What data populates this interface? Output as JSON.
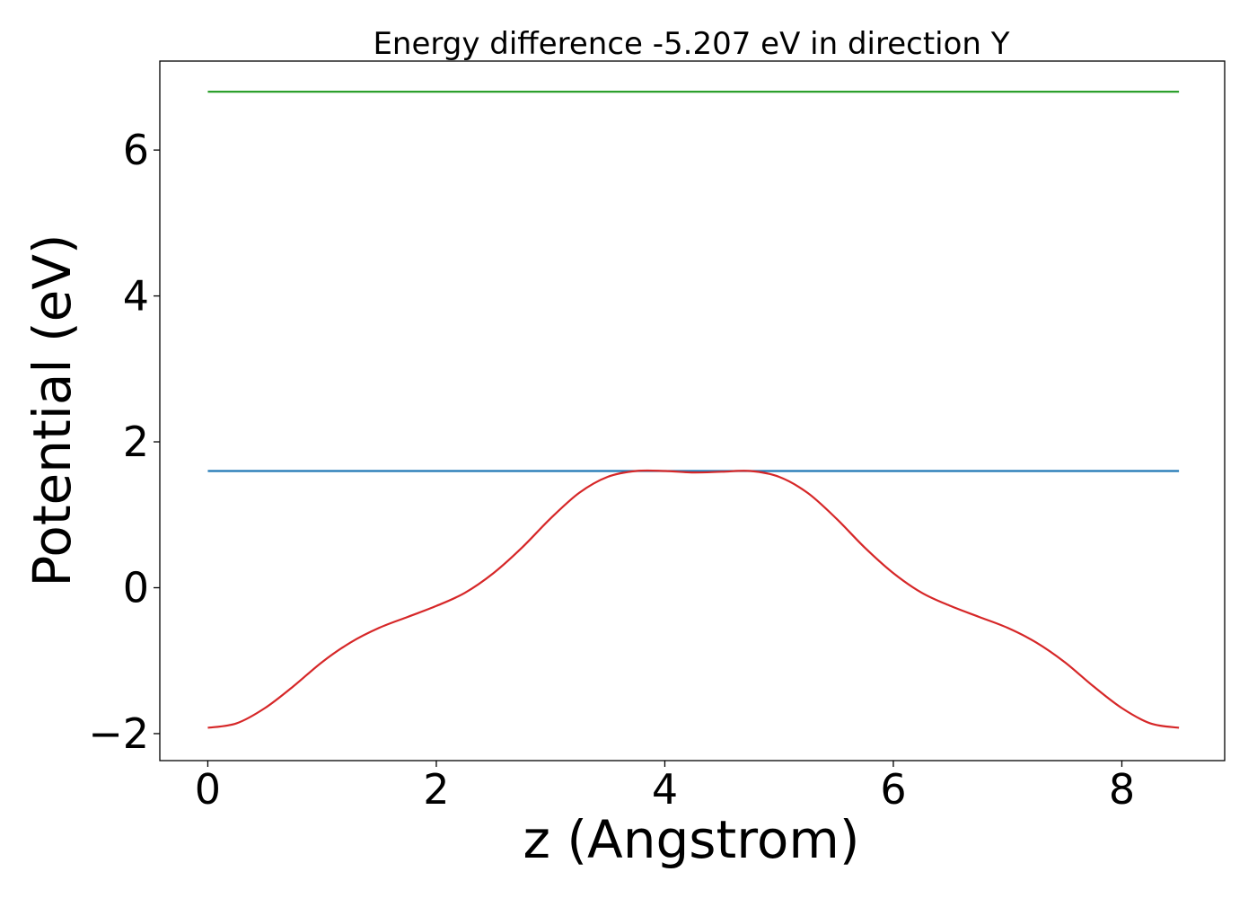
{
  "chart_data": {
    "type": "line",
    "title": "Energy difference -5.207 eV in direction Y",
    "xlabel": "z (Angstrom)",
    "ylabel": "Potential (eV)",
    "xlim": [
      -0.42,
      8.9
    ],
    "ylim": [
      -2.37,
      7.22
    ],
    "xticks": [
      0,
      2,
      4,
      6,
      8
    ],
    "xtick_labels": [
      "0",
      "2",
      "4",
      "6",
      "8"
    ],
    "yticks": [
      -2,
      0,
      2,
      4,
      6
    ],
    "ytick_labels": [
      "−2",
      "0",
      "2",
      "4",
      "6"
    ],
    "grid": false,
    "legend": "none",
    "series": [
      {
        "color": "#2ca02c",
        "x": [
          0,
          8.5
        ],
        "y": [
          6.8,
          6.8
        ]
      },
      {
        "color": "#1f77b4",
        "x": [
          0,
          8.5
        ],
        "y": [
          1.6,
          1.6
        ]
      },
      {
        "color": "#d62728",
        "x": [
          0,
          0.25,
          0.5,
          0.75,
          1.0,
          1.25,
          1.5,
          1.75,
          2.0,
          2.25,
          2.5,
          2.75,
          3.0,
          3.25,
          3.5,
          3.75,
          4.0,
          4.25,
          4.5,
          4.75,
          5.0,
          5.25,
          5.5,
          5.75,
          6.0,
          6.25,
          6.5,
          6.75,
          7.0,
          7.25,
          7.5,
          7.75,
          8.0,
          8.25,
          8.5
        ],
        "y": [
          -1.92,
          -1.86,
          -1.65,
          -1.35,
          -1.02,
          -0.75,
          -0.55,
          -0.4,
          -0.25,
          -0.07,
          0.2,
          0.55,
          0.95,
          1.3,
          1.52,
          1.6,
          1.6,
          1.58,
          1.59,
          1.6,
          1.52,
          1.3,
          0.95,
          0.55,
          0.2,
          -0.07,
          -0.25,
          -0.4,
          -0.55,
          -0.75,
          -1.02,
          -1.35,
          -1.65,
          -1.86,
          -1.92
        ]
      }
    ]
  }
}
